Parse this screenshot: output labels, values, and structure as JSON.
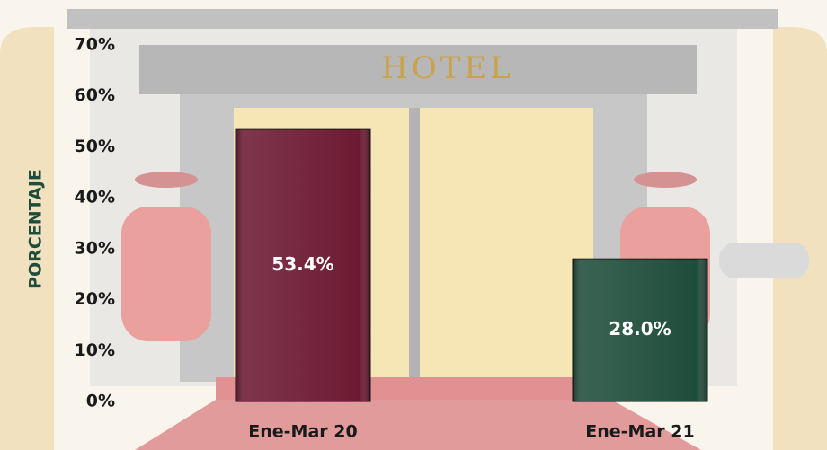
{
  "chart_data": {
    "type": "bar",
    "background_text": "HOTEL",
    "ylabel": "PORCENTAJE",
    "categories": [
      "Ene-Mar 20",
      "Ene-Mar 21"
    ],
    "values": [
      53.4,
      28.0
    ],
    "value_labels": [
      "53.4%",
      "28.0%"
    ],
    "colors": [
      "#6d1a33",
      "#1f4d3b"
    ],
    "ylim": [
      0,
      70
    ],
    "yticks": [
      {
        "value": 0,
        "label": "0%"
      },
      {
        "value": 10,
        "label": "10%"
      },
      {
        "value": 20,
        "label": "20%"
      },
      {
        "value": 30,
        "label": "30%"
      },
      {
        "value": 40,
        "label": "40%"
      },
      {
        "value": 50,
        "label": "50%"
      },
      {
        "value": 60,
        "label": "60%"
      },
      {
        "value": 70,
        "label": "70%"
      }
    ],
    "grid": false
  }
}
